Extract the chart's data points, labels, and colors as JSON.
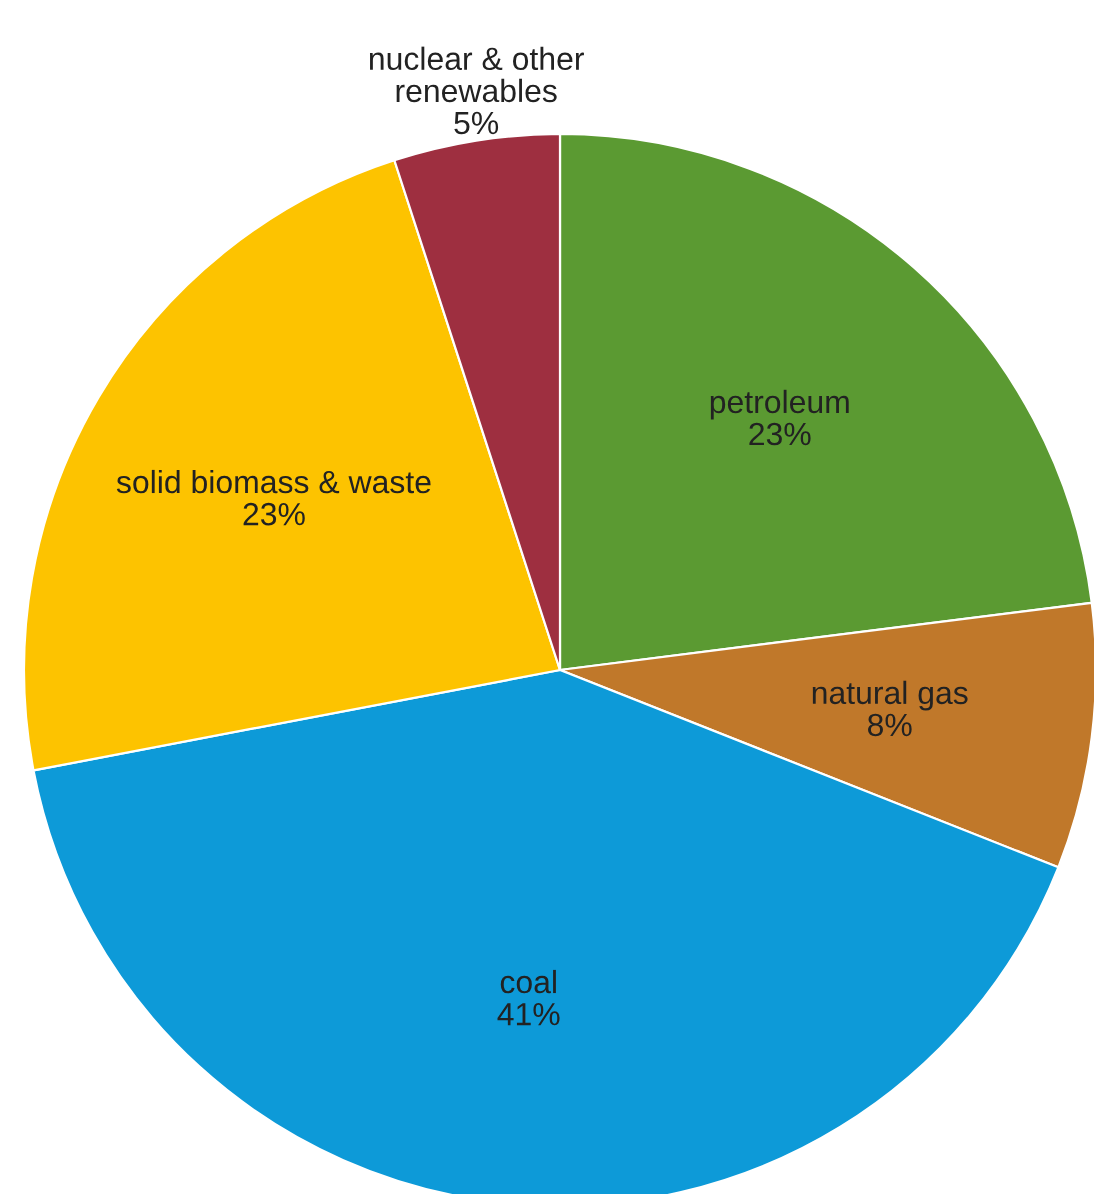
{
  "chart_data": {
    "type": "pie",
    "categories": [
      "petroleum",
      "natural gas",
      "coal",
      "solid biomass & waste",
      "nuclear & other renewables"
    ],
    "values": [
      23,
      8,
      41,
      23,
      5
    ],
    "value_labels": [
      "23%",
      "8%",
      "41%",
      "23%",
      "5%"
    ],
    "colors": [
      "#5b9a32",
      "#c0782a",
      "#0d9ad8",
      "#fdc300",
      "#9e2f40"
    ]
  }
}
